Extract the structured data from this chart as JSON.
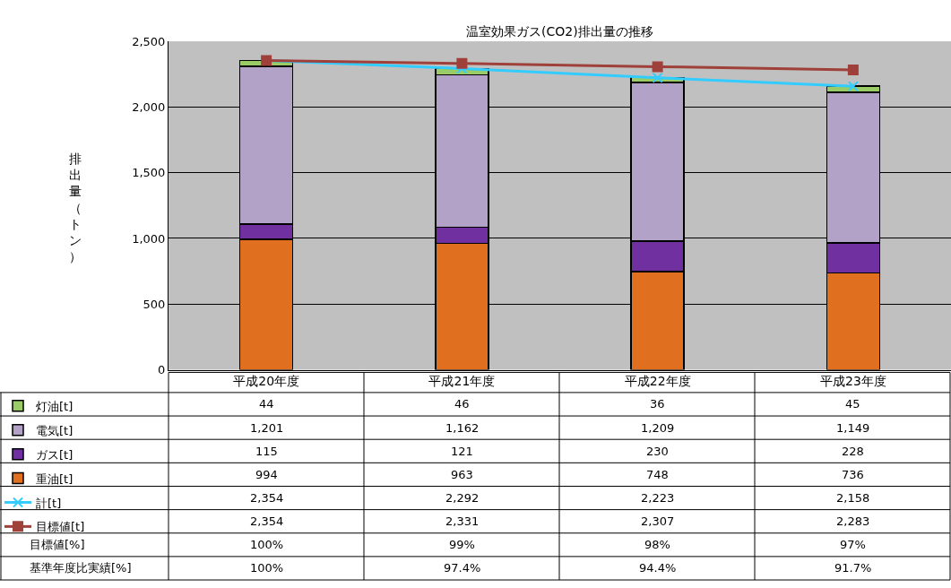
{
  "chart_data": {
    "type": "bar",
    "title": "温室効果ガス(CO2)排出量の推移",
    "ylabel": "排出量（トン）",
    "categories": [
      "平成20年度",
      "平成21年度",
      "平成22年度",
      "平成23年度"
    ],
    "stacked": true,
    "grid": "y",
    "legend": "bottom left",
    "ylim": [
      0,
      2500
    ],
    "yticks": [
      0,
      500,
      {
        "value": 1000,
        "label": "1,000"
      },
      {
        "value": 1500,
        "label": "1,500"
      },
      {
        "value": 2000,
        "label": "2,000"
      },
      {
        "value": 2500,
        "label": "2,500"
      }
    ],
    "series": [
      {
        "name": "重油[t]",
        "color": "#e07020",
        "values": [
          994,
          963,
          748,
          736
        ],
        "value_labels": [
          "994",
          "963",
          "748",
          "736"
        ]
      },
      {
        "name": "ガス[t]",
        "color": "#7030a0",
        "values": [
          115,
          121,
          230,
          228
        ],
        "value_labels": [
          "115",
          "121",
          "230",
          "228"
        ]
      },
      {
        "name": "電気[t]",
        "color": "#b3a2c7",
        "values": [
          1201,
          1162,
          1209,
          1149
        ],
        "value_labels": [
          "1,201",
          "1,162",
          "1,209",
          "1,149"
        ]
      },
      {
        "name": "灯油[t]",
        "color": "#99cc66",
        "values": [
          44,
          46,
          36,
          45
        ],
        "value_labels": [
          "44",
          "46",
          "36",
          "45"
        ]
      },
      {
        "name": "計[t]",
        "type": "line",
        "marker": "cross",
        "color": "#33ccff",
        "values": [
          2354,
          2292,
          2223,
          2158
        ],
        "value_labels": [
          "2,354",
          "2,292",
          "2,223",
          "2,158"
        ]
      },
      {
        "name": "目標値[t]",
        "type": "line",
        "marker": "square",
        "color": "#a0403a",
        "values": [
          2354,
          2331,
          2307,
          2283
        ],
        "value_labels": [
          "2,354",
          "2,331",
          "2,307",
          "2,283"
        ]
      }
    ],
    "annotations": [
      "目標値[%]",
      "100%",
      "99%",
      "98%",
      "97%",
      "基準年度比実績[%]",
      "100%",
      "97.4%",
      "94.4%",
      "91.7%"
    ]
  }
}
